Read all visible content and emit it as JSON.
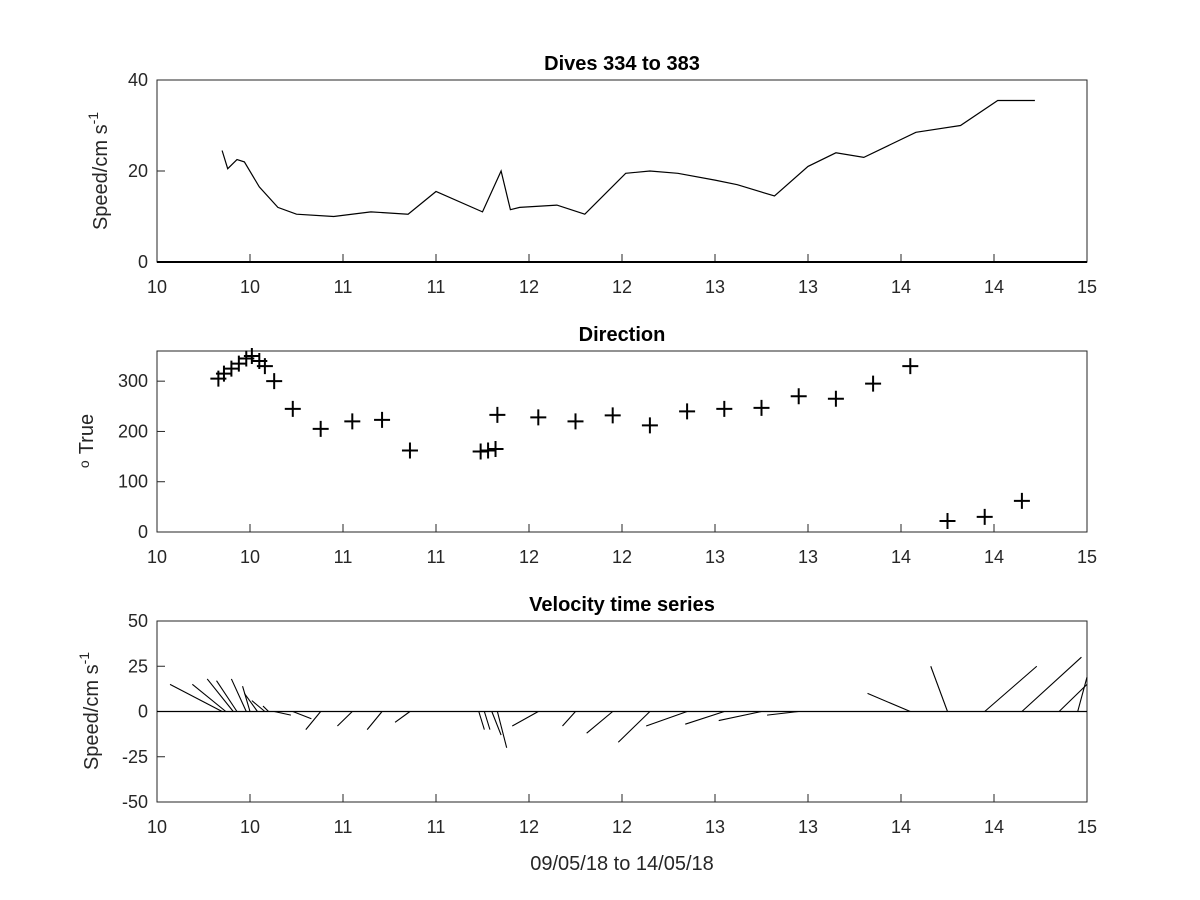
{
  "chart_data": [
    {
      "type": "line",
      "title": "Dives 334 to 383",
      "ylabel": "Speed/cm s",
      "ylabel_sup": "-1",
      "xlim": [
        9.6,
        14.6
      ],
      "ylim": [
        0,
        40
      ],
      "yticks": [
        0,
        20,
        40
      ],
      "xtick_labels": [
        "10",
        "10",
        "11",
        "11",
        "12",
        "12",
        "13",
        "13",
        "14",
        "14",
        "15"
      ],
      "grid": false,
      "series": [
        {
          "x": [
            9.95,
            9.98,
            10.03,
            10.07,
            10.15,
            10.25,
            10.35,
            10.55,
            10.75,
            10.95,
            11.1,
            11.35,
            11.45,
            11.5,
            11.55,
            11.75,
            11.9,
            12.12,
            12.25,
            12.4,
            12.6,
            12.72,
            12.92,
            13.1,
            13.25,
            13.4,
            13.68,
            13.92,
            14.12,
            14.32
          ],
          "y": [
            24.5,
            20.5,
            22.5,
            22,
            16.5,
            12,
            10.5,
            10,
            11,
            10.5,
            15.5,
            11,
            20,
            11.5,
            12,
            12.5,
            10.5,
            19.5,
            20,
            19.5,
            18,
            17,
            14.5,
            21,
            24,
            23,
            28.5,
            30,
            35.5,
            35.5
          ]
        }
      ]
    },
    {
      "type": "scatter",
      "title": "Direction",
      "ylabel": "True",
      "ylabel_sup": "o",
      "xlim": [
        9.6,
        14.6
      ],
      "ylim": [
        0,
        360
      ],
      "yticks": [
        0,
        100,
        200,
        300
      ],
      "xtick_labels": [
        "10",
        "10",
        "11",
        "11",
        "12",
        "12",
        "13",
        "13",
        "14",
        "14",
        "15"
      ],
      "grid": false,
      "marker": "+",
      "series": [
        {
          "x": [
            9.93,
            9.96,
            10.0,
            10.04,
            10.08,
            10.11,
            10.15,
            10.18,
            10.23,
            10.33,
            10.48,
            10.65,
            10.81,
            10.96,
            11.34,
            11.38,
            11.42,
            11.43,
            11.65,
            11.85,
            12.05,
            12.25,
            12.45,
            12.65,
            12.85,
            13.05,
            13.25,
            13.45,
            13.65,
            13.85,
            14.05,
            14.25
          ],
          "y": [
            305,
            315,
            325,
            335,
            345,
            350,
            340,
            330,
            300,
            245,
            205,
            220,
            223,
            162,
            160,
            162,
            165,
            233,
            228,
            220,
            232,
            212,
            240,
            245,
            247,
            270,
            265,
            295,
            330,
            22,
            30,
            62
          ]
        }
      ]
    },
    {
      "type": "line",
      "subtype": "stick",
      "title": "Velocity time series",
      "ylabel": "Speed/cm s",
      "ylabel_sup": "-1",
      "xlabel": "09/05/18 to 14/05/18",
      "xlim": [
        9.6,
        14.6
      ],
      "ylim": [
        -50,
        50
      ],
      "yticks": [
        -50,
        -25,
        0,
        25,
        50
      ],
      "ytick_labels": [
        "-50",
        "-25",
        "0",
        "25",
        "50"
      ],
      "xtick_labels": [
        "10",
        "10",
        "11",
        "11",
        "12",
        "12",
        "13",
        "13",
        "14",
        "14",
        "15"
      ],
      "grid": false,
      "note_sticks": "each stick starts on y=0 at time x and ends at (x2, v)",
      "sticks": [
        {
          "x": 9.95,
          "x2": 9.67,
          "v": 15
        },
        {
          "x": 9.97,
          "x2": 9.79,
          "v": 15
        },
        {
          "x": 10.01,
          "x2": 9.87,
          "v": 18
        },
        {
          "x": 10.03,
          "x2": 9.92,
          "v": 17
        },
        {
          "x": 10.08,
          "x2": 10.0,
          "v": 18
        },
        {
          "x": 10.1,
          "x2": 10.06,
          "v": 14
        },
        {
          "x": 10.14,
          "x2": 10.07,
          "v": 10
        },
        {
          "x": 10.18,
          "x2": 10.11,
          "v": 6
        },
        {
          "x": 10.2,
          "x2": 10.17,
          "v": 3
        },
        {
          "x": 10.23,
          "x2": 10.32,
          "v": -2
        },
        {
          "x": 10.33,
          "x2": 10.43,
          "v": -4
        },
        {
          "x": 10.48,
          "x2": 10.4,
          "v": -10
        },
        {
          "x": 10.65,
          "x2": 10.57,
          "v": -8
        },
        {
          "x": 10.81,
          "x2": 10.73,
          "v": -10
        },
        {
          "x": 10.96,
          "x2": 10.88,
          "v": -6
        },
        {
          "x": 11.33,
          "x2": 11.36,
          "v": -10
        },
        {
          "x": 11.36,
          "x2": 11.39,
          "v": -10
        },
        {
          "x": 11.4,
          "x2": 11.45,
          "v": -13
        },
        {
          "x": 11.43,
          "x2": 11.48,
          "v": -20
        },
        {
          "x": 11.65,
          "x2": 11.51,
          "v": -8
        },
        {
          "x": 11.85,
          "x2": 11.78,
          "v": -8
        },
        {
          "x": 12.05,
          "x2": 11.91,
          "v": -12
        },
        {
          "x": 12.25,
          "x2": 12.08,
          "v": -17
        },
        {
          "x": 12.45,
          "x2": 12.23,
          "v": -8
        },
        {
          "x": 12.65,
          "x2": 12.44,
          "v": -7
        },
        {
          "x": 12.85,
          "x2": 12.62,
          "v": -5
        },
        {
          "x": 13.05,
          "x2": 12.88,
          "v": -2
        },
        {
          "x": 13.25,
          "x2": 13.06,
          "v": 0
        },
        {
          "x": 13.45,
          "x2": 13.08,
          "v": 0
        },
        {
          "x": 13.65,
          "x2": 13.42,
          "v": 10
        },
        {
          "x": 13.85,
          "x2": 13.76,
          "v": 25
        },
        {
          "x": 14.05,
          "x2": 14.33,
          "v": 25
        },
        {
          "x": 14.25,
          "x2": 14.57,
          "v": 30
        },
        {
          "x": 14.45,
          "x2": 14.98,
          "v": 15
        },
        {
          "x": 14.55,
          "x2": 15.0,
          "v": 19
        }
      ]
    }
  ]
}
